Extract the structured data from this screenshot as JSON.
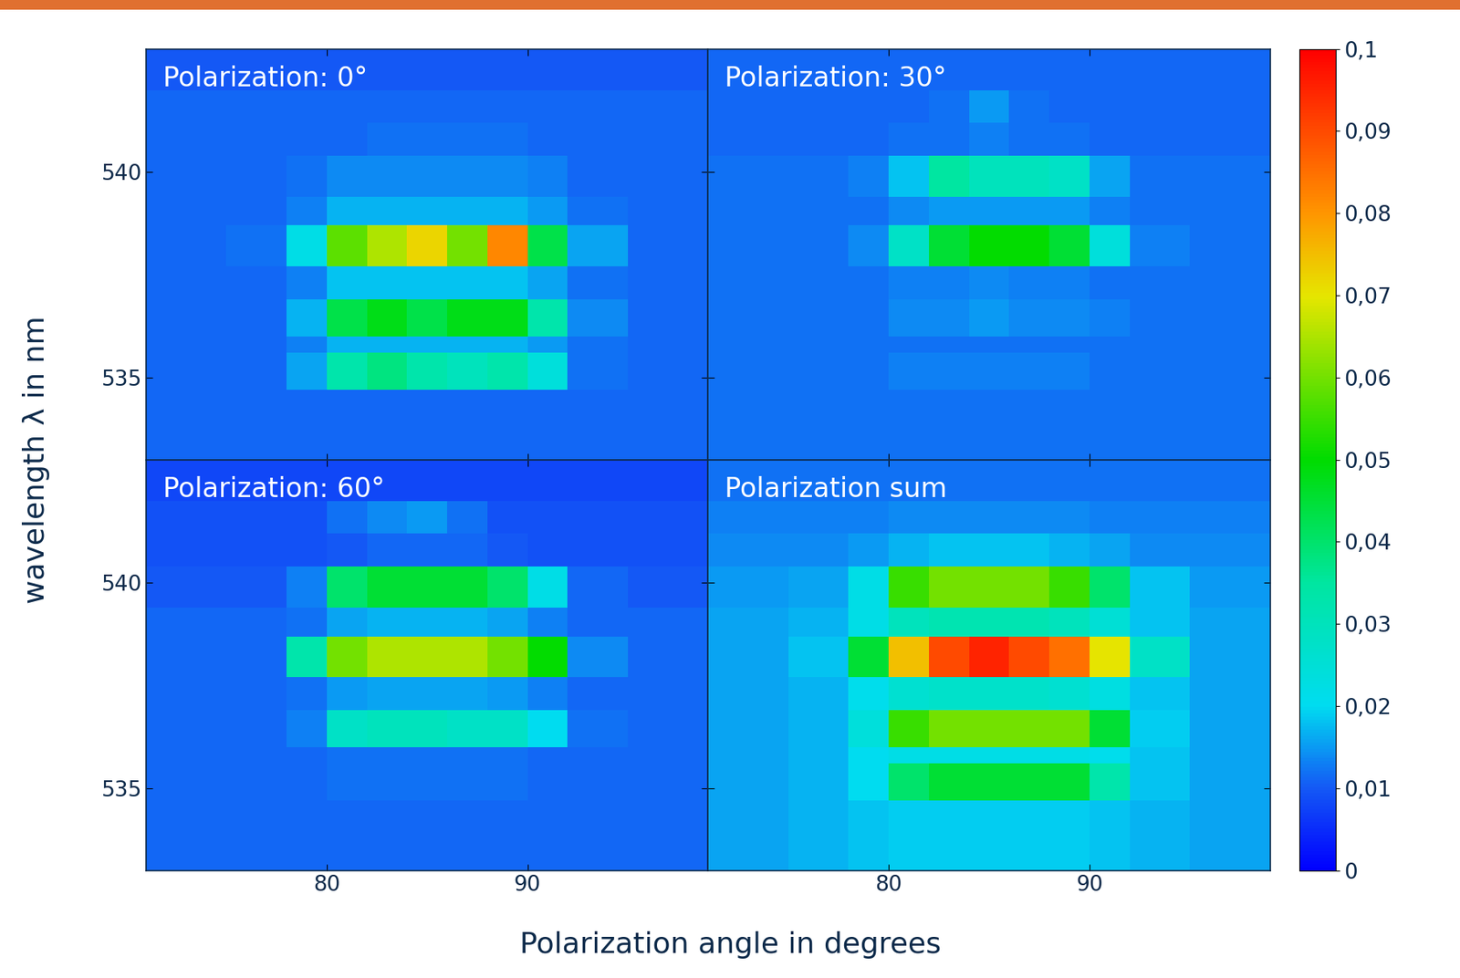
{
  "chart_data": [
    {
      "type": "heatmap",
      "title": "Polarization: 0°",
      "tick_labels": "y",
      "xlim": [
        71,
        99
      ],
      "ylim": [
        533,
        543
      ],
      "xticks": [
        80,
        90
      ],
      "yticks": [
        535,
        540
      ],
      "x_edges": [
        71,
        75,
        78,
        80,
        82,
        84,
        86,
        88,
        90,
        92,
        95,
        99
      ],
      "y_edges": [
        533,
        534.7,
        535.6,
        536.0,
        536.9,
        537.7,
        538.7,
        539.4,
        540.4,
        541.2,
        542.0,
        543
      ],
      "cells": [
        [
          0.011,
          0.011,
          0.011,
          0.011,
          0.011,
          0.011,
          0.011,
          0.011,
          0.011,
          0.011,
          0.011
        ],
        [
          0.011,
          0.011,
          0.016,
          0.033,
          0.038,
          0.033,
          0.03,
          0.033,
          0.024,
          0.012,
          0.011
        ],
        [
          0.011,
          0.011,
          0.013,
          0.017,
          0.017,
          0.017,
          0.017,
          0.017,
          0.015,
          0.012,
          0.011
        ],
        [
          0.011,
          0.011,
          0.017,
          0.043,
          0.048,
          0.043,
          0.048,
          0.048,
          0.033,
          0.014,
          0.011
        ],
        [
          0.011,
          0.011,
          0.013,
          0.018,
          0.018,
          0.018,
          0.018,
          0.018,
          0.016,
          0.012,
          0.011
        ],
        [
          0.011,
          0.012,
          0.022,
          0.058,
          0.065,
          0.072,
          0.06,
          0.082,
          0.043,
          0.016,
          0.011
        ],
        [
          0.011,
          0.011,
          0.013,
          0.017,
          0.017,
          0.017,
          0.017,
          0.017,
          0.015,
          0.012,
          0.011
        ],
        [
          0.011,
          0.011,
          0.012,
          0.014,
          0.014,
          0.014,
          0.014,
          0.014,
          0.013,
          0.011,
          0.011
        ],
        [
          0.011,
          0.011,
          0.011,
          0.011,
          0.012,
          0.012,
          0.012,
          0.012,
          0.011,
          0.011,
          0.011
        ],
        [
          0.011,
          0.011,
          0.011,
          0.011,
          0.011,
          0.011,
          0.011,
          0.011,
          0.011,
          0.011,
          0.011
        ],
        [
          0.01,
          0.01,
          0.01,
          0.01,
          0.01,
          0.01,
          0.01,
          0.01,
          0.01,
          0.01,
          0.01
        ]
      ]
    },
    {
      "type": "heatmap",
      "title": "Polarization: 30°",
      "tick_labels": false,
      "xlim": [
        71,
        99
      ],
      "ylim": [
        533,
        543
      ],
      "xticks": [
        80,
        90
      ],
      "yticks": [
        535,
        540
      ],
      "x_edges": [
        71,
        75,
        78,
        80,
        82,
        84,
        86,
        88,
        90,
        92,
        95,
        99
      ],
      "y_edges": [
        533,
        534.7,
        535.6,
        536.0,
        536.9,
        537.7,
        538.7,
        539.4,
        540.4,
        541.2,
        542.0,
        543
      ],
      "cells": [
        [
          0.012,
          0.012,
          0.012,
          0.012,
          0.012,
          0.012,
          0.012,
          0.012,
          0.012,
          0.012,
          0.012
        ],
        [
          0.012,
          0.012,
          0.012,
          0.013,
          0.013,
          0.013,
          0.013,
          0.013,
          0.012,
          0.012,
          0.012
        ],
        [
          0.012,
          0.012,
          0.012,
          0.012,
          0.012,
          0.012,
          0.012,
          0.012,
          0.012,
          0.012,
          0.012
        ],
        [
          0.012,
          0.012,
          0.012,
          0.014,
          0.014,
          0.015,
          0.014,
          0.014,
          0.013,
          0.012,
          0.012
        ],
        [
          0.012,
          0.012,
          0.012,
          0.013,
          0.013,
          0.014,
          0.013,
          0.013,
          0.012,
          0.012,
          0.012
        ],
        [
          0.012,
          0.012,
          0.014,
          0.028,
          0.045,
          0.05,
          0.05,
          0.045,
          0.024,
          0.013,
          0.012
        ],
        [
          0.012,
          0.012,
          0.012,
          0.014,
          0.015,
          0.015,
          0.015,
          0.015,
          0.013,
          0.012,
          0.012
        ],
        [
          0.012,
          0.012,
          0.013,
          0.018,
          0.035,
          0.03,
          0.03,
          0.028,
          0.016,
          0.012,
          0.012
        ],
        [
          0.011,
          0.011,
          0.011,
          0.012,
          0.012,
          0.013,
          0.012,
          0.012,
          0.011,
          0.011,
          0.011
        ],
        [
          0.011,
          0.011,
          0.011,
          0.011,
          0.012,
          0.015,
          0.012,
          0.011,
          0.011,
          0.011,
          0.011
        ],
        [
          0.011,
          0.011,
          0.011,
          0.011,
          0.011,
          0.011,
          0.011,
          0.011,
          0.011,
          0.011,
          0.011
        ]
      ]
    },
    {
      "type": "heatmap",
      "title": "Polarization: 60°",
      "tick_labels": true,
      "xlim": [
        71,
        99
      ],
      "ylim": [
        533,
        543
      ],
      "xticks": [
        80,
        90
      ],
      "yticks": [
        535,
        540
      ],
      "x_edges": [
        71,
        75,
        78,
        80,
        82,
        84,
        86,
        88,
        90,
        92,
        95,
        99
      ],
      "y_edges": [
        533,
        534.7,
        535.6,
        536.0,
        536.9,
        537.7,
        538.7,
        539.4,
        540.4,
        541.2,
        542.0,
        543
      ],
      "cells": [
        [
          0.011,
          0.011,
          0.011,
          0.011,
          0.011,
          0.011,
          0.011,
          0.011,
          0.011,
          0.011,
          0.011
        ],
        [
          0.011,
          0.011,
          0.011,
          0.012,
          0.012,
          0.012,
          0.012,
          0.012,
          0.011,
          0.011,
          0.011
        ],
        [
          0.011,
          0.011,
          0.011,
          0.012,
          0.012,
          0.012,
          0.012,
          0.012,
          0.011,
          0.011,
          0.011
        ],
        [
          0.011,
          0.011,
          0.013,
          0.028,
          0.03,
          0.03,
          0.028,
          0.028,
          0.02,
          0.012,
          0.011
        ],
        [
          0.011,
          0.011,
          0.012,
          0.015,
          0.016,
          0.016,
          0.016,
          0.015,
          0.013,
          0.011,
          0.011
        ],
        [
          0.011,
          0.011,
          0.033,
          0.06,
          0.065,
          0.065,
          0.065,
          0.06,
          0.05,
          0.014,
          0.011
        ],
        [
          0.011,
          0.011,
          0.012,
          0.016,
          0.017,
          0.017,
          0.017,
          0.016,
          0.013,
          0.011,
          0.011
        ],
        [
          0.01,
          0.01,
          0.013,
          0.04,
          0.045,
          0.045,
          0.045,
          0.04,
          0.022,
          0.011,
          0.01
        ],
        [
          0.009,
          0.009,
          0.009,
          0.01,
          0.011,
          0.011,
          0.011,
          0.01,
          0.009,
          0.009,
          0.009
        ],
        [
          0.009,
          0.009,
          0.009,
          0.012,
          0.014,
          0.015,
          0.012,
          0.009,
          0.009,
          0.009,
          0.009
        ],
        [
          0.008,
          0.008,
          0.008,
          0.008,
          0.008,
          0.008,
          0.008,
          0.008,
          0.008,
          0.008,
          0.008
        ]
      ]
    },
    {
      "type": "heatmap",
      "title": "Polarization sum",
      "tick_labels": "x",
      "xlim": [
        71,
        99
      ],
      "ylim": [
        533,
        543
      ],
      "xticks": [
        80,
        90
      ],
      "yticks": [
        535,
        540
      ],
      "x_edges": [
        71,
        75,
        78,
        80,
        82,
        84,
        86,
        88,
        90,
        92,
        95,
        99
      ],
      "y_edges": [
        533,
        534.7,
        535.6,
        536.0,
        536.9,
        537.7,
        538.7,
        539.4,
        540.4,
        541.2,
        542.0,
        543
      ],
      "cells": [
        [
          0.016,
          0.017,
          0.018,
          0.019,
          0.019,
          0.019,
          0.019,
          0.019,
          0.018,
          0.017,
          0.016
        ],
        [
          0.016,
          0.017,
          0.02,
          0.04,
          0.045,
          0.045,
          0.045,
          0.045,
          0.033,
          0.018,
          0.016
        ],
        [
          0.016,
          0.017,
          0.02,
          0.022,
          0.022,
          0.022,
          0.022,
          0.022,
          0.021,
          0.018,
          0.016
        ],
        [
          0.016,
          0.017,
          0.024,
          0.055,
          0.06,
          0.06,
          0.06,
          0.06,
          0.045,
          0.019,
          0.016
        ],
        [
          0.016,
          0.017,
          0.021,
          0.026,
          0.027,
          0.027,
          0.027,
          0.026,
          0.023,
          0.018,
          0.016
        ],
        [
          0.016,
          0.018,
          0.045,
          0.075,
          0.09,
          0.095,
          0.09,
          0.085,
          0.07,
          0.028,
          0.016
        ],
        [
          0.016,
          0.017,
          0.022,
          0.03,
          0.032,
          0.032,
          0.032,
          0.03,
          0.025,
          0.018,
          0.016
        ],
        [
          0.015,
          0.016,
          0.022,
          0.055,
          0.06,
          0.06,
          0.06,
          0.055,
          0.04,
          0.018,
          0.015
        ],
        [
          0.014,
          0.014,
          0.015,
          0.017,
          0.018,
          0.018,
          0.018,
          0.017,
          0.016,
          0.014,
          0.014
        ],
        [
          0.013,
          0.013,
          0.013,
          0.014,
          0.014,
          0.014,
          0.014,
          0.014,
          0.013,
          0.013,
          0.013
        ],
        [
          0.012,
          0.012,
          0.012,
          0.012,
          0.012,
          0.012,
          0.012,
          0.012,
          0.012,
          0.012,
          0.012
        ]
      ]
    }
  ],
  "x_label": "Polarization angle in degrees",
  "y_label": "wavelength λ in nm",
  "colorbar_range": [
    0,
    0.1
  ],
  "colorbar_ticks": [
    0,
    {
      "value": 0.01,
      "label": "0,01"
    },
    {
      "value": 0.02,
      "label": "0,02"
    },
    {
      "value": 0.03,
      "label": "0,03"
    },
    {
      "value": 0.04,
      "label": "0,04"
    },
    {
      "value": 0.05,
      "label": "0,05"
    },
    {
      "value": 0.06,
      "label": "0,06"
    },
    {
      "value": 0.07,
      "label": "0,07"
    },
    {
      "value": 0.08,
      "label": "0,08"
    },
    {
      "value": 0.09,
      "label": "0,09"
    },
    {
      "value": 0.1,
      "label": "0,1"
    }
  ]
}
